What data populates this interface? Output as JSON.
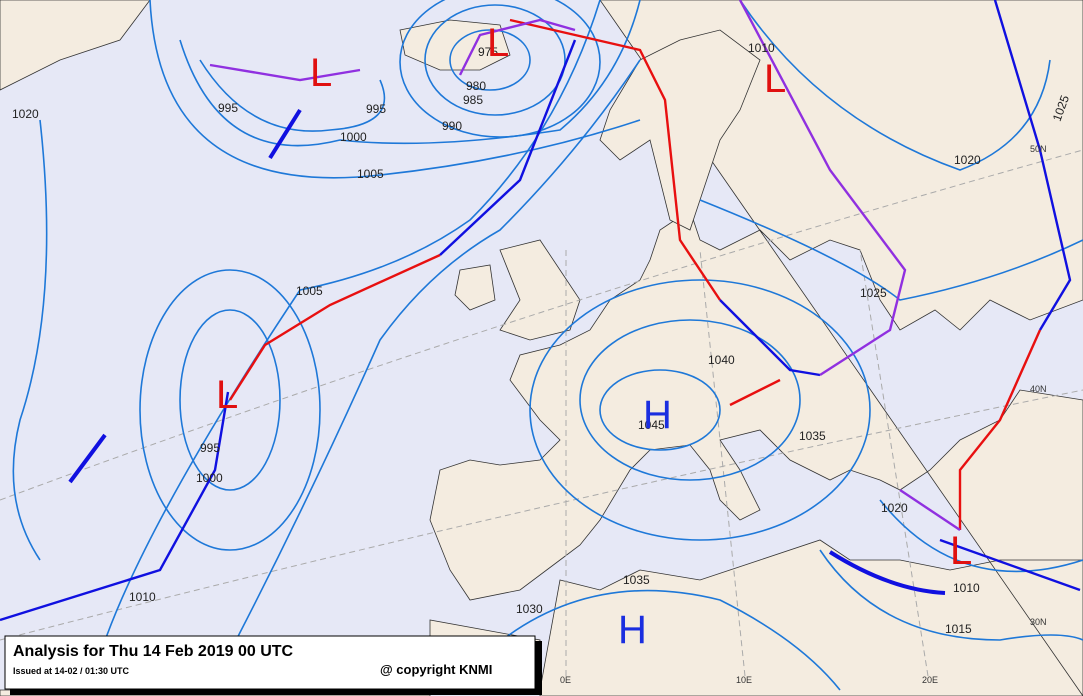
{
  "map": {
    "title": "Analysis for Thu 14 Feb 2019 00 UTC",
    "issued": "Issued at 14-02 / 01:30 UTC",
    "copyright": "@ copyright KNMI",
    "isobar_labels": [
      "1020",
      "995",
      "995",
      "1000",
      "1005",
      "990",
      "975",
      "980",
      "985",
      "1010",
      "1020",
      "1025",
      "1005",
      "1025",
      "1040",
      "1045",
      "1035",
      "995",
      "1000",
      "1020",
      "1010",
      "1035",
      "1030",
      "1010",
      "1015"
    ],
    "centers": [
      "L",
      "L",
      "L",
      "L",
      "H",
      "H",
      "L"
    ],
    "graticule_labels": [
      "50N",
      "40N",
      "30N",
      "0E",
      "10E",
      "20E"
    ]
  }
}
